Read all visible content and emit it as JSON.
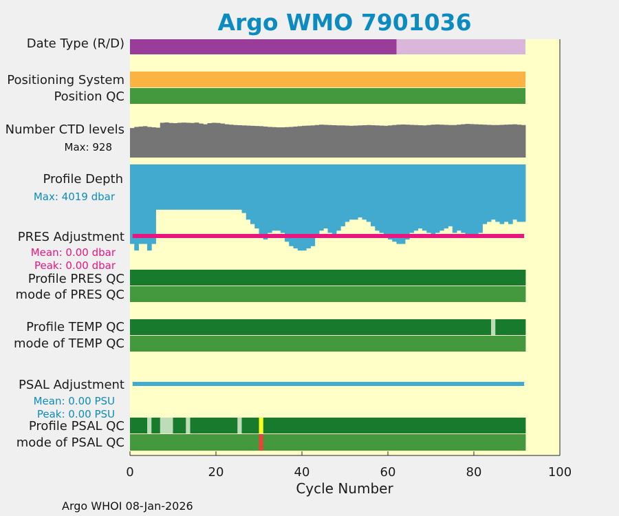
{
  "chart_data": {
    "type": "heatmap",
    "title": "Argo WMO 7901036",
    "xlabel": "Cycle Number",
    "xlim": [
      0,
      100
    ],
    "xticks": [
      0,
      20,
      40,
      60,
      80,
      100
    ],
    "n_cycles": 92,
    "rows": [
      {
        "key": "datetype",
        "label": "Date Type (R/D)"
      },
      {
        "key": "possys",
        "label": "Positioning System"
      },
      {
        "key": "posqc",
        "label": "Position QC"
      },
      {
        "key": "nctd",
        "label": "Number CTD levels"
      },
      {
        "key": "depth",
        "label": "Profile Depth"
      },
      {
        "key": "presadj",
        "label": "PRES Adjustment"
      },
      {
        "key": "profpres",
        "label": "Profile PRES QC"
      },
      {
        "key": "modepres",
        "label": "mode of PRES QC"
      },
      {
        "key": "proftemp",
        "label": "Profile TEMP QC"
      },
      {
        "key": "modetemp",
        "label": "mode of TEMP QC"
      },
      {
        "key": "psaladj",
        "label": "PSAL Adjustment"
      },
      {
        "key": "profpsal",
        "label": "Profile PSAL QC"
      },
      {
        "key": "modepsal",
        "label": "mode of PSAL QC"
      }
    ],
    "annotations": {
      "nctd_max": "Max: 928",
      "depth_max": "Max: 4019 dbar",
      "pres_mean": "Mean: 0.00 dbar",
      "pres_peak": "Peak: 0.00 dbar",
      "psal_mean": "Mean: 0.00 PSU",
      "psal_peak": "Peak: 0.00 PSU"
    },
    "datetype": {
      "realtime_until_cycle": 62,
      "delayed_from_cycle": 62
    },
    "nctd_levels": [
      780,
      810,
      820,
      830,
      810,
      800,
      790,
      920,
      928,
      915,
      910,
      920,
      925,
      920,
      915,
      925,
      900,
      880,
      910,
      920,
      915,
      900,
      880,
      870,
      860,
      855,
      850,
      845,
      840,
      835,
      830,
      820,
      810,
      805,
      800,
      800,
      805,
      810,
      820,
      830,
      840,
      845,
      850,
      860,
      870,
      865,
      860,
      855,
      850,
      850,
      845,
      840,
      845,
      850,
      855,
      860,
      855,
      850,
      845,
      840,
      850,
      860,
      870,
      875,
      870,
      865,
      860,
      855,
      850,
      860,
      870,
      875,
      870,
      865,
      860,
      860,
      870,
      880,
      890,
      885,
      880,
      875,
      870,
      865,
      860,
      860,
      865,
      870,
      875,
      880,
      870,
      860
    ],
    "profile_depth": [
      3600,
      3900,
      3600,
      3600,
      3900,
      3600,
      2050,
      2050,
      2050,
      2050,
      2050,
      2050,
      2050,
      2050,
      2050,
      2050,
      2050,
      2050,
      2050,
      2050,
      2050,
      2050,
      2050,
      2050,
      2050,
      2050,
      2200,
      2500,
      2700,
      2900,
      3200,
      3400,
      3100,
      3000,
      3000,
      3100,
      3500,
      3700,
      3800,
      3900,
      3900,
      3800,
      3700,
      3300,
      3000,
      2900,
      3100,
      3200,
      3000,
      2800,
      2600,
      2500,
      2500,
      2400,
      2500,
      2600,
      2800,
      3000,
      3100,
      3300,
      3400,
      3500,
      3600,
      3600,
      3400,
      3100,
      3000,
      2900,
      3000,
      3100,
      3200,
      3100,
      3000,
      2900,
      2800,
      3100,
      3000,
      3100,
      3200,
      3300,
      3200,
      3100,
      2700,
      2600,
      2500,
      2600,
      2700,
      2600,
      2700,
      2500,
      2600,
      2600
    ],
    "profile_pres_qc": {
      "all": "A"
    },
    "mode_pres_qc": {
      "all": "1"
    },
    "profile_temp_qc": {
      "default": "A",
      "B": [
        85
      ]
    },
    "mode_temp_qc": {
      "all": "1"
    },
    "profile_psal_qc": {
      "default": "A",
      "B": [
        5,
        8,
        9,
        10,
        14,
        26
      ],
      "C": [
        31
      ]
    },
    "mode_psal_qc": {
      "default": "1",
      "4": [
        31
      ]
    },
    "colors": {
      "background": "#ffffc8",
      "realtime": "#9a3d9a",
      "delayed": "#dab6da",
      "possys": "#fbb443",
      "posqc": "#44983e",
      "nctd": "#757575",
      "depth": "#42a9cf",
      "presadj": "#e8167f",
      "psaladj": "#42a9cf",
      "qcA": "#187a2c",
      "qcB": "#bddcb7",
      "qcC": "#fdff20",
      "qc1": "#44983e",
      "qc4": "#e8443a",
      "title": "#0b8bbf"
    }
  },
  "footer": "Argo WHOI 08-Jan-2026"
}
